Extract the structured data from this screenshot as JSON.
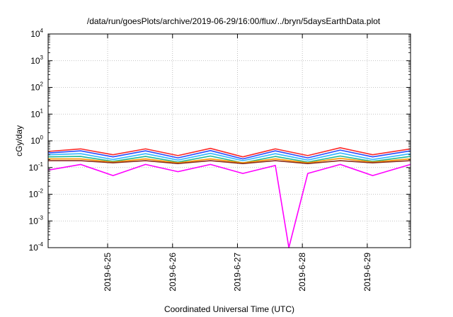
{
  "chart_data": {
    "type": "line",
    "title": "/data/run/goesPlots/archive/2019-06-29/16:00/flux/../bryn/5daysEarthData.plot",
    "xlabel": "Coordinated Universal Time (UTC)",
    "ylabel": "cGy/day",
    "yscale": "log",
    "ylim": [
      0.0001,
      10000
    ],
    "xlim": [
      "2019-06-24T02:00",
      "2019-06-29T16:00"
    ],
    "x_ticks": [
      "2019-6-25",
      "2019-6-26",
      "2019-6-27",
      "2019-6-28",
      "2019-6-29"
    ],
    "y_ticks": [
      {
        "base": "10",
        "exp": "-4"
      },
      {
        "base": "10",
        "exp": "-3"
      },
      {
        "base": "10",
        "exp": "-2"
      },
      {
        "base": "10",
        "exp": "-1"
      },
      {
        "base": "10",
        "exp": "0"
      },
      {
        "base": "10",
        "exp": "1"
      },
      {
        "base": "10",
        "exp": "2"
      },
      {
        "base": "10",
        "exp": "3"
      },
      {
        "base": "10",
        "exp": "4"
      }
    ],
    "grid": true,
    "legend": "none",
    "series": [
      {
        "color": "#ff2a2a",
        "x": [
          "2019-06-24T02:00",
          "2019-06-24T14:00",
          "2019-06-25T02:00",
          "2019-06-25T14:00",
          "2019-06-26T02:00",
          "2019-06-26T14:00",
          "2019-06-27T02:00",
          "2019-06-27T14:00",
          "2019-06-28T02:00",
          "2019-06-28T14:00",
          "2019-06-29T02:00",
          "2019-06-29T16:00"
        ],
        "values": [
          0.4,
          0.5,
          0.3,
          0.5,
          0.28,
          0.52,
          0.25,
          0.5,
          0.28,
          0.55,
          0.3,
          0.5
        ]
      },
      {
        "color": "#2a4dff",
        "x": [
          "2019-06-24T02:00",
          "2019-06-24T14:00",
          "2019-06-25T02:00",
          "2019-06-25T14:00",
          "2019-06-26T02:00",
          "2019-06-26T14:00",
          "2019-06-27T02:00",
          "2019-06-27T14:00",
          "2019-06-28T02:00",
          "2019-06-28T14:00",
          "2019-06-29T02:00",
          "2019-06-29T16:00"
        ],
        "values": [
          0.35,
          0.42,
          0.25,
          0.42,
          0.23,
          0.43,
          0.21,
          0.42,
          0.23,
          0.45,
          0.25,
          0.42
        ]
      },
      {
        "color": "#33b8ff",
        "x": [
          "2019-06-24T02:00",
          "2019-06-24T14:00",
          "2019-06-25T02:00",
          "2019-06-25T14:00",
          "2019-06-26T02:00",
          "2019-06-26T14:00",
          "2019-06-27T02:00",
          "2019-06-27T14:00",
          "2019-06-28T02:00",
          "2019-06-28T14:00",
          "2019-06-29T02:00",
          "2019-06-29T16:00"
        ],
        "values": [
          0.3,
          0.33,
          0.2,
          0.33,
          0.19,
          0.34,
          0.18,
          0.33,
          0.19,
          0.35,
          0.2,
          0.33
        ]
      },
      {
        "color": "#1fb894",
        "x": [
          "2019-06-24T02:00",
          "2019-06-24T14:00",
          "2019-06-25T02:00",
          "2019-06-25T14:00",
          "2019-06-26T02:00",
          "2019-06-26T14:00",
          "2019-06-27T02:00",
          "2019-06-27T14:00",
          "2019-06-28T02:00",
          "2019-06-28T14:00",
          "2019-06-29T02:00",
          "2019-06-29T16:00"
        ],
        "values": [
          0.25,
          0.26,
          0.17,
          0.26,
          0.16,
          0.27,
          0.15,
          0.26,
          0.16,
          0.27,
          0.17,
          0.26
        ]
      },
      {
        "color": "#ff9900",
        "x": [
          "2019-06-24T02:00",
          "2019-06-24T14:00",
          "2019-06-25T02:00",
          "2019-06-25T14:00",
          "2019-06-26T02:00",
          "2019-06-26T14:00",
          "2019-06-27T02:00",
          "2019-06-27T14:00",
          "2019-06-28T02:00",
          "2019-06-28T14:00",
          "2019-06-29T02:00",
          "2019-06-29T16:00"
        ],
        "values": [
          0.21,
          0.21,
          0.16,
          0.21,
          0.15,
          0.21,
          0.15,
          0.21,
          0.15,
          0.22,
          0.16,
          0.21
        ]
      },
      {
        "color": "#8b2d1a",
        "x": [
          "2019-06-24T02:00",
          "2019-06-24T14:00",
          "2019-06-25T02:00",
          "2019-06-25T14:00",
          "2019-06-26T02:00",
          "2019-06-26T14:00",
          "2019-06-27T02:00",
          "2019-06-27T14:00",
          "2019-06-28T02:00",
          "2019-06-28T14:00",
          "2019-06-29T02:00",
          "2019-06-29T16:00"
        ],
        "values": [
          0.18,
          0.18,
          0.15,
          0.18,
          0.14,
          0.18,
          0.14,
          0.18,
          0.14,
          0.18,
          0.15,
          0.18
        ]
      },
      {
        "color": "#ff00ff",
        "x": [
          "2019-06-24T02:00",
          "2019-06-24T14:00",
          "2019-06-25T02:00",
          "2019-06-25T14:00",
          "2019-06-26T02:00",
          "2019-06-26T14:00",
          "2019-06-27T02:00",
          "2019-06-27T14:00",
          "2019-06-27T19:00",
          "2019-06-28T02:00",
          "2019-06-28T14:00",
          "2019-06-29T02:00",
          "2019-06-29T16:00"
        ],
        "values": [
          0.08,
          0.13,
          0.05,
          0.13,
          0.07,
          0.13,
          0.06,
          0.12,
          0.0001,
          0.06,
          0.13,
          0.05,
          0.13
        ]
      }
    ]
  }
}
